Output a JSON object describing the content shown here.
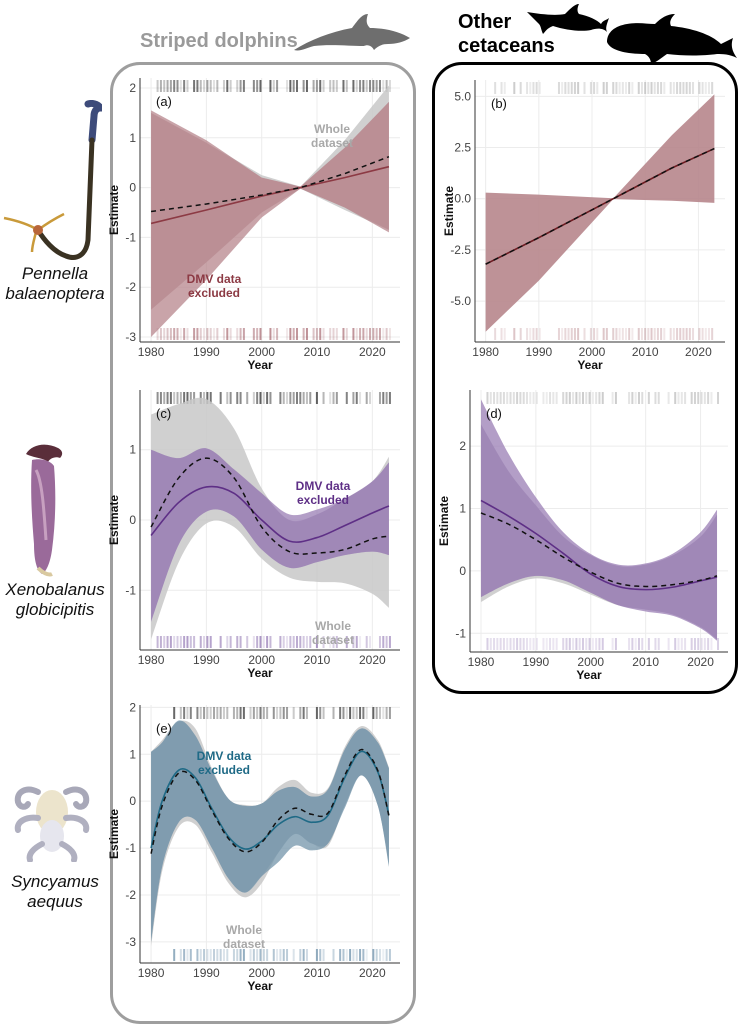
{
  "groups": {
    "striped": "Striped dolphins",
    "other_line1": "Other",
    "other_line2": "cetaceans"
  },
  "species": [
    {
      "genus": "Pennella",
      "epithet": "balaenoptera"
    },
    {
      "genus": "Xenobalanus",
      "epithet": "globicipitis"
    },
    {
      "genus": "Syncyamus",
      "epithet": "aequus"
    }
  ],
  "colors": {
    "whole": "#c8c8c8",
    "a_excl": "#8c3a44",
    "a_band": "#b7868c",
    "c_excl": "#5e2f86",
    "c_band": "#9a7db4",
    "e_excl": "#1f6a86",
    "e_band": "#7394aa"
  },
  "chart_data": [
    {
      "panel": "(a)",
      "type": "line",
      "group": "Striped dolphins",
      "species": "Pennella balaenoptera",
      "xlabel": "Year",
      "ylabel": "Estimate",
      "xlim": [
        1978,
        2025
      ],
      "ylim": [
        -3.1,
        2.2
      ],
      "xticks": [
        "1980",
        "1990",
        "2000",
        "2010",
        "2020"
      ],
      "yticks": [
        "-3",
        "-2",
        "-1",
        "0",
        "1",
        "2"
      ],
      "ytick_values": [
        -3,
        -2,
        -1,
        0,
        1,
        2
      ],
      "x": [
        1980,
        1990,
        2000,
        2007,
        2015,
        2023
      ],
      "series": [
        {
          "name": "Whole dataset",
          "style": "dashed",
          "values": [
            -0.48,
            -0.33,
            -0.15,
            0.0,
            0.28,
            0.62
          ],
          "lower": [
            -2.45,
            -1.5,
            -0.5,
            -0.02,
            -0.45,
            -0.85
          ],
          "upper": [
            1.5,
            0.9,
            0.25,
            0.02,
            0.95,
            2.05
          ]
        },
        {
          "name": "DMV data excluded",
          "style": "solid",
          "values": [
            -0.72,
            -0.45,
            -0.17,
            0.0,
            0.2,
            0.42
          ],
          "lower": [
            -3.0,
            -1.85,
            -0.6,
            -0.02,
            -0.4,
            -0.9
          ],
          "upper": [
            1.55,
            0.95,
            0.2,
            0.02,
            0.8,
            1.72
          ]
        }
      ],
      "annotations": [
        {
          "text_line1": "Whole",
          "text_line2": "dataset",
          "series": "Whole dataset"
        },
        {
          "text_line1": "DMV data",
          "text_line2": "excluded",
          "series": "DMV data excluded"
        }
      ]
    },
    {
      "panel": "(b)",
      "type": "line",
      "group": "Other cetaceans",
      "species": "Pennella balaenoptera",
      "xlabel": "Year",
      "ylabel": "Estimate",
      "xlim": [
        1978,
        2025
      ],
      "ylim": [
        -7.0,
        5.8
      ],
      "xticks": [
        "1980",
        "1990",
        "2000",
        "2010",
        "2020"
      ],
      "yticks": [
        "-5.0",
        "-2.5",
        "0.0",
        "2.5",
        "5.0"
      ],
      "ytick_values": [
        -5,
        -2.5,
        0,
        2.5,
        5
      ],
      "x": [
        1980,
        1990,
        2004,
        2015,
        2023
      ],
      "series": [
        {
          "name": "Whole dataset",
          "style": "dashed",
          "values": [
            -3.2,
            -1.9,
            0.0,
            1.5,
            2.45
          ],
          "lower": [
            -6.5,
            -4.0,
            -0.02,
            -0.1,
            -0.2
          ],
          "upper": [
            0.3,
            0.2,
            0.02,
            3.1,
            5.1
          ]
        },
        {
          "name": "DMV data excluded",
          "style": "solid",
          "values": [
            -3.2,
            -1.9,
            0.0,
            1.5,
            2.45
          ],
          "lower": [
            -6.5,
            -4.0,
            -0.02,
            -0.1,
            -0.2
          ],
          "upper": [
            0.3,
            0.2,
            0.02,
            3.1,
            5.1
          ]
        }
      ]
    },
    {
      "panel": "(c)",
      "type": "line",
      "group": "Striped dolphins",
      "species": "Xenobalanus globicipitis",
      "xlabel": "Year",
      "ylabel": "Estimate",
      "xlim": [
        1978,
        2025
      ],
      "ylim": [
        -1.85,
        1.85
      ],
      "xticks": [
        "1980",
        "1990",
        "2000",
        "2010",
        "2020"
      ],
      "yticks": [
        "-1",
        "0",
        "1"
      ],
      "ytick_values": [
        -1,
        0,
        1
      ],
      "x": [
        1980,
        1985,
        1990,
        1995,
        2000,
        2005,
        2010,
        2015,
        2020,
        2023
      ],
      "series": [
        {
          "name": "Whole dataset",
          "style": "dashed",
          "values": [
            -0.1,
            0.6,
            0.88,
            0.6,
            -0.1,
            -0.45,
            -0.47,
            -0.42,
            -0.27,
            -0.23
          ],
          "lower": [
            -1.7,
            -0.6,
            -0.05,
            -0.1,
            -0.55,
            -0.82,
            -0.88,
            -0.9,
            -1.05,
            -1.25
          ],
          "upper": [
            1.5,
            1.65,
            1.72,
            1.3,
            0.45,
            0.0,
            0.08,
            0.3,
            0.55,
            0.9
          ]
        },
        {
          "name": "DMV data excluded",
          "style": "solid",
          "values": [
            -0.22,
            0.25,
            0.47,
            0.38,
            0.0,
            -0.3,
            -0.25,
            -0.08,
            0.1,
            0.2
          ],
          "lower": [
            -1.45,
            -0.35,
            0.12,
            0.05,
            -0.42,
            -0.68,
            -0.6,
            -0.5,
            -0.45,
            -0.5
          ],
          "upper": [
            1.0,
            0.88,
            1.02,
            0.72,
            0.38,
            0.08,
            0.15,
            0.3,
            0.55,
            0.82
          ]
        }
      ],
      "annotations": [
        {
          "text_line1": "DMV data",
          "text_line2": "excluded",
          "series": "DMV data excluded"
        },
        {
          "text_line1": "Whole",
          "text_line2": "dataset",
          "series": "Whole dataset"
        }
      ]
    },
    {
      "panel": "(d)",
      "type": "line",
      "group": "Other cetaceans",
      "species": "Xenobalanus globicipitis",
      "xlabel": "Year",
      "ylabel": "Estimate",
      "xlim": [
        1978,
        2025
      ],
      "ylim": [
        -1.3,
        2.9
      ],
      "xticks": [
        "1980",
        "1990",
        "2000",
        "2010",
        "2020"
      ],
      "yticks": [
        "-1",
        "0",
        "1",
        "2"
      ],
      "ytick_values": [
        -1,
        0,
        1,
        2
      ],
      "x": [
        1980,
        1985,
        1990,
        1995,
        2000,
        2005,
        2010,
        2015,
        2020,
        2023
      ],
      "series": [
        {
          "name": "Whole dataset",
          "style": "dashed",
          "values": [
            0.93,
            0.75,
            0.5,
            0.22,
            -0.02,
            -0.2,
            -0.25,
            -0.22,
            -0.15,
            -0.08
          ],
          "lower": [
            -0.5,
            -0.25,
            -0.12,
            -0.2,
            -0.38,
            -0.55,
            -0.62,
            -0.7,
            -0.9,
            -1.1
          ],
          "upper": [
            2.35,
            1.6,
            1.05,
            0.55,
            0.25,
            0.08,
            0.1,
            0.25,
            0.55,
            0.9
          ]
        },
        {
          "name": "DMV data excluded",
          "style": "solid",
          "values": [
            1.13,
            0.88,
            0.6,
            0.28,
            -0.05,
            -0.25,
            -0.3,
            -0.26,
            -0.16,
            -0.1
          ],
          "lower": [
            -0.42,
            -0.2,
            -0.08,
            -0.15,
            -0.35,
            -0.55,
            -0.65,
            -0.72,
            -0.92,
            -1.12
          ],
          "upper": [
            2.75,
            1.88,
            1.18,
            0.62,
            0.27,
            0.1,
            0.12,
            0.28,
            0.62,
            0.98
          ]
        }
      ]
    },
    {
      "panel": "(e)",
      "type": "line",
      "group": "Striped dolphins",
      "species": "Syncyamus aequus",
      "xlabel": "Year",
      "ylabel": "Estimate",
      "xlim": [
        1978,
        2025
      ],
      "ylim": [
        -3.45,
        2.05
      ],
      "xticks": [
        "1980",
        "1990",
        "2000",
        "2010",
        "2020"
      ],
      "yticks": [
        "-3",
        "-2",
        "-1",
        "0",
        "1",
        "2"
      ],
      "ytick_values": [
        -3,
        -2,
        -1,
        0,
        1,
        2
      ],
      "x": [
        1980,
        1982,
        1985,
        1988,
        1991,
        1994,
        1997,
        2000,
        2003,
        2006,
        2009,
        2012,
        2015,
        2018,
        2021,
        2023
      ],
      "series": [
        {
          "name": "Whole dataset",
          "style": "dashed",
          "values": [
            -1.12,
            -0.1,
            0.6,
            0.45,
            -0.2,
            -0.8,
            -1.08,
            -0.88,
            -0.4,
            -0.15,
            -0.28,
            -0.25,
            0.55,
            1.1,
            0.65,
            -0.32
          ],
          "lower": [
            -3.1,
            -1.5,
            -0.55,
            -0.5,
            -1.1,
            -1.75,
            -2.05,
            -1.75,
            -1.1,
            -0.7,
            -0.9,
            -0.95,
            -0.1,
            0.55,
            -0.1,
            -1.35
          ],
          "upper": [
            1.05,
            1.3,
            1.7,
            1.55,
            0.7,
            0.05,
            -0.08,
            -0.05,
            0.3,
            0.45,
            0.18,
            0.28,
            1.15,
            1.6,
            1.3,
            0.72
          ]
        },
        {
          "name": "DMV data excluded",
          "style": "solid",
          "values": [
            -1.0,
            0.0,
            0.66,
            0.5,
            -0.16,
            -0.76,
            -1.02,
            -0.85,
            -0.5,
            -0.33,
            -0.45,
            -0.3,
            0.5,
            1.06,
            0.62,
            -0.3
          ],
          "lower": [
            -3.0,
            -1.4,
            -0.45,
            -0.4,
            -1.0,
            -1.65,
            -1.95,
            -1.6,
            -1.3,
            -0.95,
            -1.05,
            -0.9,
            -0.15,
            0.55,
            -0.1,
            -1.4
          ],
          "upper": [
            1.05,
            1.25,
            1.72,
            1.4,
            0.65,
            0.05,
            -0.1,
            -0.05,
            0.22,
            0.3,
            0.1,
            0.25,
            1.1,
            1.55,
            1.25,
            0.7
          ]
        }
      ],
      "annotations": [
        {
          "text_line1": "DMV data",
          "text_line2": "excluded",
          "series": "DMV data excluded"
        },
        {
          "text_line1": "Whole",
          "text_line2": "dataset",
          "series": "Whole dataset"
        }
      ]
    }
  ]
}
